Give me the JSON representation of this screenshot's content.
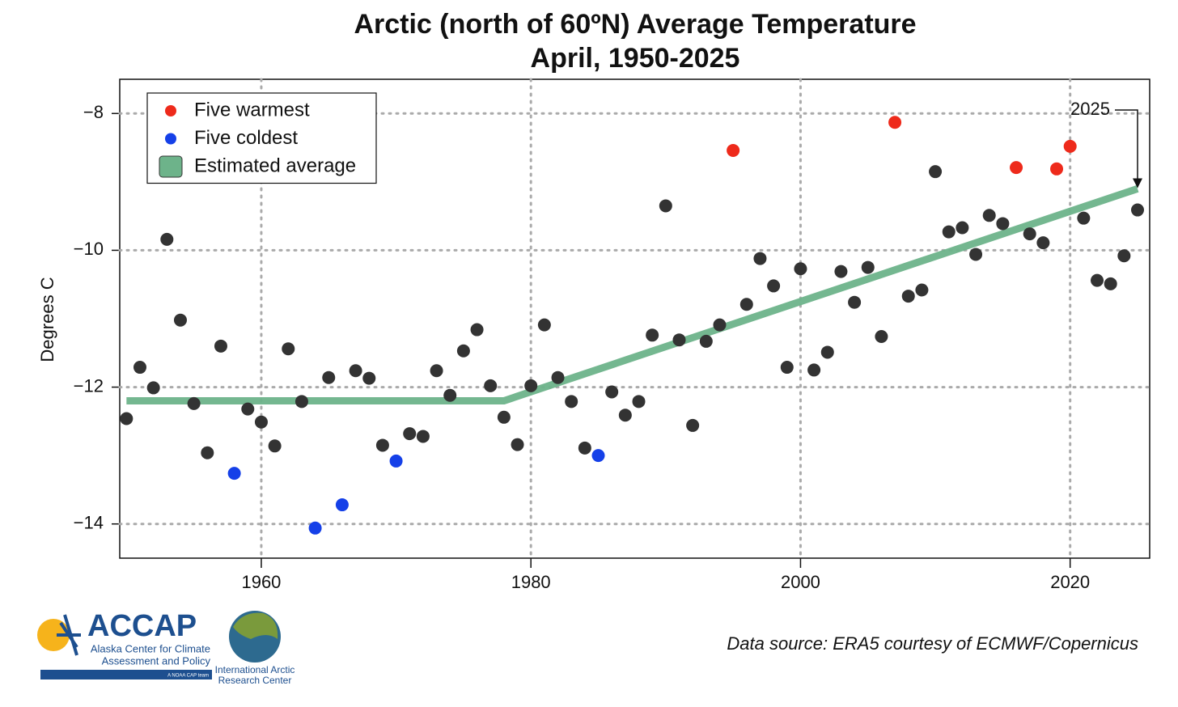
{
  "chart_data": {
    "type": "scatter",
    "title": "Arctic (north of 60ºN) Average Temperature",
    "subtitle": "April, 1950-2025",
    "y_label": "Degrees C",
    "xlim": [
      1949.5,
      2025.9
    ],
    "ylim": [
      -14.5,
      -7.5
    ],
    "xticks": [
      1960,
      1980,
      2000,
      2020
    ],
    "yticks": [
      {
        "value": -8,
        "label": "−8"
      },
      {
        "value": -10,
        "label": "−10"
      },
      {
        "value": -12,
        "label": "−12"
      },
      {
        "value": -14,
        "label": "−14"
      }
    ],
    "grid": true,
    "legend": "upper left",
    "series": [
      {
        "color": "#333333",
        "x": [
          1950,
          1951,
          1952,
          1953,
          1954,
          1955,
          1956,
          1957,
          1959,
          1960,
          1961,
          1962,
          1963,
          1965,
          1967,
          1968,
          1969,
          1971,
          1972,
          1973,
          1974,
          1975,
          1976,
          1977,
          1978,
          1979,
          1980,
          1981,
          1982,
          1983,
          1984,
          1986,
          1987,
          1988,
          1989,
          1990,
          1991,
          1992,
          1993,
          1994,
          1996,
          1997,
          1998,
          1999,
          2000,
          2001,
          2002,
          2003,
          2004,
          2005,
          2006,
          2008,
          2009,
          2010,
          2011,
          2012,
          2013,
          2014,
          2015,
          2017,
          2018,
          2021,
          2022,
          2023,
          2024,
          2025
        ],
        "values": [
          -12.46,
          -11.71,
          -12.01,
          -9.84,
          -11.02,
          -12.24,
          -12.96,
          -11.4,
          -12.32,
          -12.51,
          -12.86,
          -11.44,
          -12.21,
          -11.86,
          -11.76,
          -11.87,
          -12.85,
          -12.68,
          -12.72,
          -11.76,
          -12.12,
          -11.47,
          -11.16,
          -11.98,
          -12.44,
          -12.84,
          -11.98,
          -11.09,
          -11.86,
          -12.21,
          -12.89,
          -12.07,
          -12.41,
          -12.21,
          -11.24,
          -9.35,
          -11.31,
          -12.56,
          -11.33,
          -11.09,
          -10.79,
          -10.12,
          -10.52,
          -11.71,
          -10.27,
          -11.75,
          -11.49,
          -10.31,
          -10.76,
          -10.25,
          -11.26,
          -10.67,
          -10.58,
          -8.85,
          -9.73,
          -9.67,
          -10.06,
          -9.49,
          -9.61,
          -9.76,
          -9.89,
          -9.53,
          -10.44,
          -10.49,
          -10.08,
          -9.41
        ]
      },
      {
        "name": "Five warmest",
        "color": "#ee2a1b",
        "x": [
          1995,
          2007,
          2016,
          2019,
          2020
        ],
        "values": [
          -8.54,
          -8.13,
          -8.79,
          -8.81,
          -8.48
        ]
      },
      {
        "name": "Five coldest",
        "color": "#1540e8",
        "x": [
          1958,
          1964,
          1966,
          1970,
          1985
        ],
        "values": [
          -13.26,
          -14.06,
          -13.72,
          -13.08,
          -13.0
        ]
      }
    ],
    "trend": {
      "name": "Estimated average",
      "color": "#6db38a",
      "x": [
        1950,
        1978,
        2025
      ],
      "values": [
        -12.2,
        -12.2,
        -9.1
      ]
    },
    "annotation": "2025",
    "source": "Data source: ERA5 courtesy of ECMWF/Copernicus",
    "logo_texts": [
      "ACCAP",
      "Alaska Center for Climate",
      "Assessment and Policy",
      "A NOAA CAP team",
      "International Arctic",
      "Research Center"
    ]
  }
}
